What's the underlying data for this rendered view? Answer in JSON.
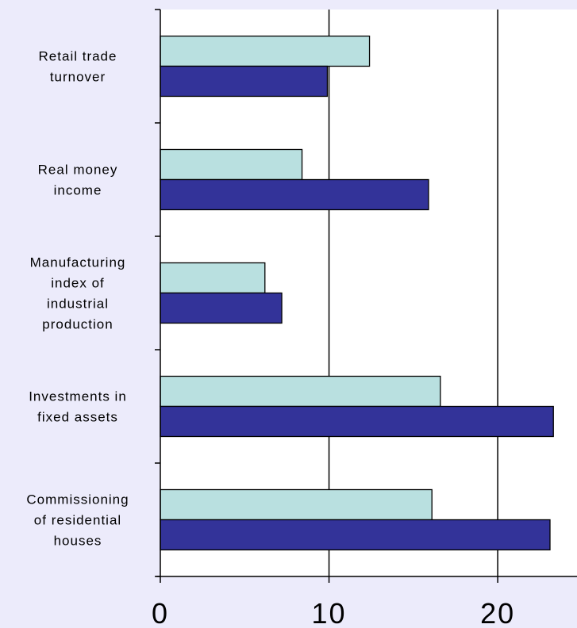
{
  "chart_data": {
    "type": "bar",
    "orientation": "horizontal",
    "categories": [
      [
        "Retail trade",
        "turnover"
      ],
      [
        "Real money",
        "income"
      ],
      [
        "Manufacturing",
        "index of",
        "industrial",
        "production"
      ],
      [
        "Investments in",
        "fixed assets"
      ],
      [
        "Commissioning",
        "of residential",
        "houses"
      ]
    ],
    "series": [
      {
        "color": "#B9E0E0",
        "values": [
          12.4,
          8.4,
          6.2,
          16.6,
          16.1
        ]
      },
      {
        "color": "#333399",
        "values": [
          9.9,
          15.9,
          7.2,
          23.3,
          23.1
        ]
      }
    ],
    "x_ticks": [
      "0",
      "10",
      "20"
    ],
    "xlim": [
      0,
      24.7
    ],
    "grid": "vertical",
    "title": "",
    "xlabel": "",
    "ylabel": "",
    "plot_background": "#FFFFFF",
    "page_background": "#ECEBFB"
  }
}
